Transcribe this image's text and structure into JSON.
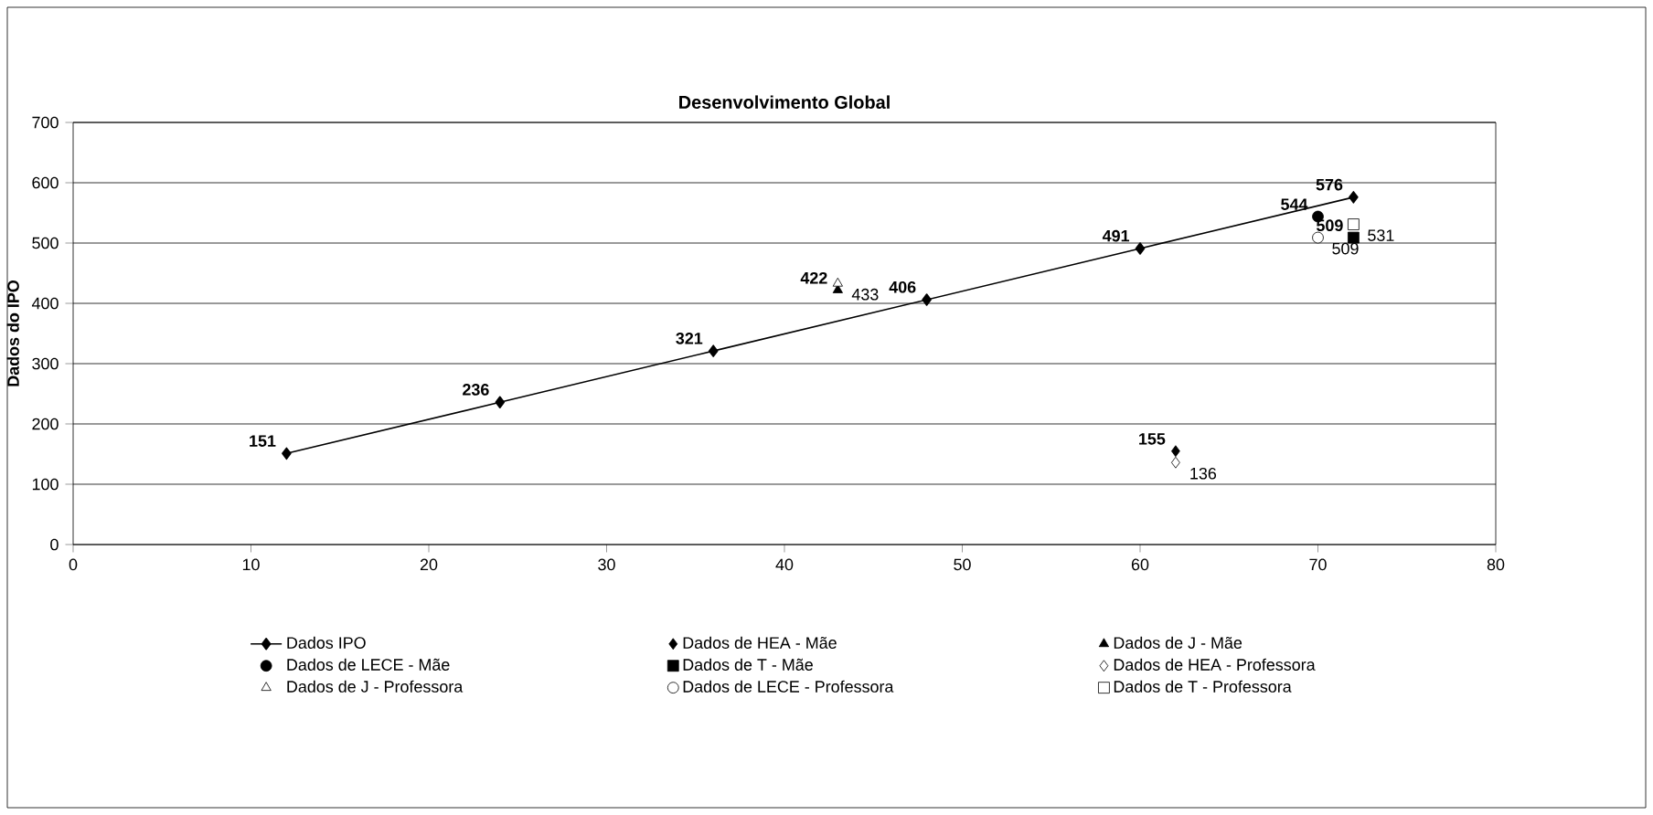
{
  "chart_data": {
    "type": "scatter",
    "title": "Desenvolvimento Global",
    "ylabel": "Dados do IPO",
    "xlim": [
      0,
      80
    ],
    "xticks": [
      0,
      10,
      20,
      30,
      40,
      50,
      60,
      70,
      80
    ],
    "ylim": [
      0,
      700
    ],
    "yticks": [
      0,
      100,
      200,
      300,
      400,
      500,
      600,
      700
    ],
    "grid": "y",
    "legend": "bottom",
    "data_labels": true,
    "series": [
      {
        "name": "Dados IPO",
        "type": "line",
        "marker": "diamond",
        "color": "#000000",
        "x": [
          12,
          24,
          36,
          48,
          60,
          72
        ],
        "values": [
          151,
          236,
          321,
          406,
          491,
          576
        ]
      },
      {
        "name": "Dados de HEA - Mãe",
        "marker": "diamond",
        "color": "#000000",
        "x": [
          62
        ],
        "values": [
          155
        ]
      },
      {
        "name": "Dados de J - Mãe",
        "marker": "triangle",
        "color": "#000000",
        "x": [
          43
        ],
        "values": [
          422
        ]
      },
      {
        "name": "Dados de LECE - Mãe",
        "marker": "circle",
        "color": "#000000",
        "x": [
          70
        ],
        "values": [
          544
        ]
      },
      {
        "name": "Dados de T - Mãe",
        "marker": "square",
        "color": "#000000",
        "x": [
          72
        ],
        "values": [
          509
        ]
      },
      {
        "name": "Dados de HEA - Professora",
        "marker": "diamond",
        "color": "#ffffff",
        "x": [
          62
        ],
        "values": [
          136
        ]
      },
      {
        "name": "Dados de J - Professora",
        "marker": "triangle",
        "color": "#ffffff",
        "x": [
          43
        ],
        "values": [
          433
        ]
      },
      {
        "name": "Dados de LECE - Professora",
        "marker": "circle",
        "color": "#ffffff",
        "x": [
          70
        ],
        "values": [
          509
        ]
      },
      {
        "name": "Dados de T - Professora",
        "marker": "square",
        "color": "#ffffff",
        "x": [
          72
        ],
        "values": [
          531
        ]
      }
    ]
  }
}
